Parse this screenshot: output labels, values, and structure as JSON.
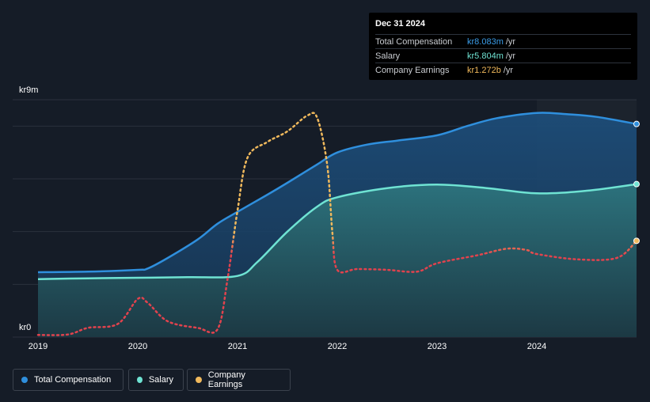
{
  "tooltip": {
    "date": "Dec 31 2024",
    "rows": [
      {
        "label": "Total Compensation",
        "value": "kr8.083m",
        "unit": "/yr",
        "color": "#3a9ce8"
      },
      {
        "label": "Salary",
        "value": "kr5.804m",
        "unit": "/yr",
        "color": "#6fe3d3"
      },
      {
        "label": "Company Earnings",
        "value": "kr1.272b",
        "unit": "/yr",
        "color": "#f0b95c"
      }
    ]
  },
  "legend": {
    "items": [
      {
        "label": "Total Compensation",
        "color": "#2f8fdd"
      },
      {
        "label": "Salary",
        "color": "#6fe3d3"
      },
      {
        "label": "Company Earnings",
        "color": "#f0b95c"
      }
    ]
  },
  "chart_data": {
    "type": "line",
    "y_top_label": "kr9m",
    "y_bottom_label": "kr0",
    "ylim": [
      0,
      9
    ],
    "x_ticks": [
      "2019",
      "2020",
      "2021",
      "2022",
      "2023",
      "2024"
    ],
    "xlim": [
      2019.0,
      2025.0
    ],
    "series": [
      {
        "name": "Total Compensation",
        "unit": "kr m",
        "color": "#2f8fdd",
        "points": [
          [
            2019.0,
            2.46
          ],
          [
            2019.5,
            2.48
          ],
          [
            2020.0,
            2.55
          ],
          [
            2020.1,
            2.6
          ],
          [
            2020.3,
            3.0
          ],
          [
            2020.6,
            3.7
          ],
          [
            2020.8,
            4.3
          ],
          [
            2021.0,
            4.75
          ],
          [
            2021.3,
            5.4
          ],
          [
            2021.5,
            5.85
          ],
          [
            2021.8,
            6.55
          ],
          [
            2022.0,
            7.0
          ],
          [
            2022.3,
            7.3
          ],
          [
            2022.6,
            7.45
          ],
          [
            2023.0,
            7.65
          ],
          [
            2023.3,
            8.0
          ],
          [
            2023.6,
            8.3
          ],
          [
            2024.0,
            8.5
          ],
          [
            2024.3,
            8.45
          ],
          [
            2024.6,
            8.35
          ],
          [
            2025.0,
            8.08
          ]
        ]
      },
      {
        "name": "Salary",
        "unit": "kr m",
        "color": "#6fe3d3",
        "points": [
          [
            2019.0,
            2.2
          ],
          [
            2019.5,
            2.23
          ],
          [
            2020.0,
            2.25
          ],
          [
            2020.5,
            2.27
          ],
          [
            2021.0,
            2.32
          ],
          [
            2021.2,
            2.85
          ],
          [
            2021.5,
            4.0
          ],
          [
            2021.8,
            4.95
          ],
          [
            2022.0,
            5.3
          ],
          [
            2022.5,
            5.65
          ],
          [
            2023.0,
            5.78
          ],
          [
            2023.5,
            5.65
          ],
          [
            2024.0,
            5.45
          ],
          [
            2024.5,
            5.55
          ],
          [
            2025.0,
            5.8
          ]
        ]
      },
      {
        "name": "Company Earnings",
        "unit": "kr m (scaled)",
        "color": "#f0b95c",
        "points": [
          [
            2019.0,
            0.08
          ],
          [
            2019.3,
            0.1
          ],
          [
            2019.5,
            0.35
          ],
          [
            2019.8,
            0.5
          ],
          [
            2020.0,
            1.45
          ],
          [
            2020.1,
            1.3
          ],
          [
            2020.3,
            0.6
          ],
          [
            2020.6,
            0.35
          ],
          [
            2020.8,
            0.3
          ],
          [
            2020.9,
            2.2
          ],
          [
            2021.0,
            4.8
          ],
          [
            2021.1,
            6.8
          ],
          [
            2021.3,
            7.4
          ],
          [
            2021.5,
            7.8
          ],
          [
            2021.7,
            8.4
          ],
          [
            2021.8,
            8.3
          ],
          [
            2021.9,
            6.5
          ],
          [
            2021.95,
            4.0
          ],
          [
            2022.0,
            2.55
          ],
          [
            2022.2,
            2.58
          ],
          [
            2022.5,
            2.55
          ],
          [
            2022.8,
            2.48
          ],
          [
            2023.0,
            2.8
          ],
          [
            2023.4,
            3.1
          ],
          [
            2023.7,
            3.35
          ],
          [
            2023.9,
            3.3
          ],
          [
            2024.0,
            3.15
          ],
          [
            2024.4,
            2.95
          ],
          [
            2024.8,
            3.0
          ],
          [
            2025.0,
            3.65
          ]
        ]
      }
    ],
    "earnings_gradient": [
      "#e2424d",
      "#f0b95c"
    ]
  }
}
